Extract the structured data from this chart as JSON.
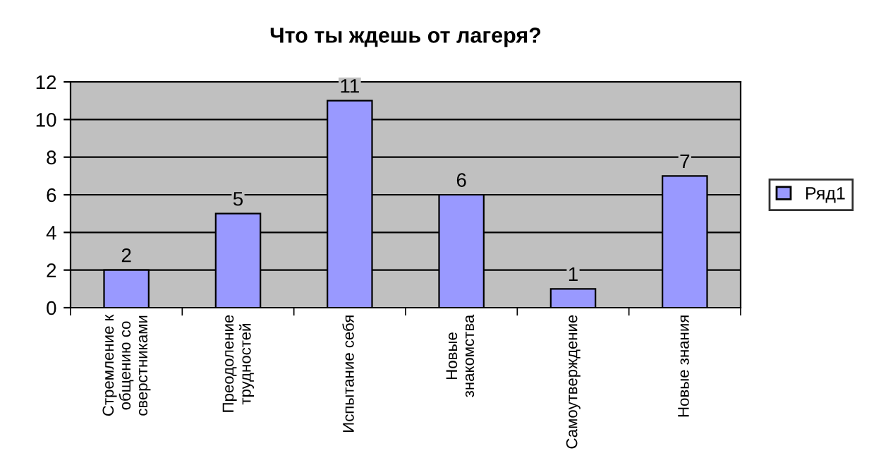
{
  "chart_data": {
    "type": "bar",
    "title": "Что ты ждешь от лагеря?",
    "categories": [
      "Стремление к\nобщению со\nсверстниками",
      "Преодоление\nтрудностей",
      "Испытание себя",
      "Новые\nзнакомства",
      "Самоутверждение",
      "Новые знания"
    ],
    "series": [
      {
        "name": "Ряд1",
        "color": "#9999ff",
        "values": [
          2,
          5,
          11,
          6,
          1,
          7
        ]
      }
    ],
    "ylim": [
      0,
      12
    ],
    "yticks": [
      0,
      2,
      4,
      6,
      8,
      10,
      12
    ],
    "grid": "y",
    "legend": "right",
    "data_labels": true
  }
}
